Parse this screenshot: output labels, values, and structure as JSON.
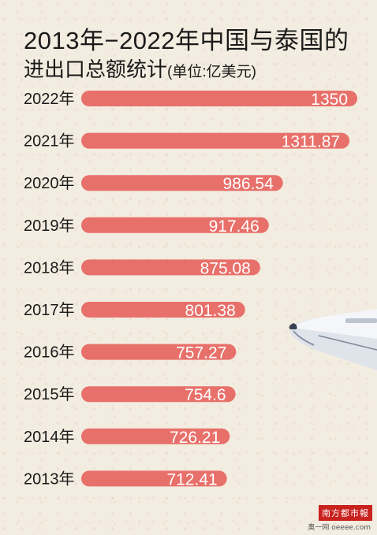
{
  "header": {
    "title": "2013年−2022年中国与泰国的",
    "subtitle": "进出口总额统计",
    "unit": "(单位:亿美元)"
  },
  "colors": {
    "bar": "#e8706a",
    "bar_text": "#ffffff",
    "label": "#1a1a1a"
  },
  "chart_data": {
    "type": "bar",
    "orientation": "horizontal",
    "title": "2013年−2022年中国与泰国的进出口总额统计(单位:亿美元)",
    "categories": [
      "2022年",
      "2021年",
      "2020年",
      "2019年",
      "2018年",
      "2017年",
      "2016年",
      "2015年",
      "2014年",
      "2013年"
    ],
    "values": [
      1350,
      1311.87,
      986.54,
      917.46,
      875.08,
      801.38,
      757.27,
      754.6,
      726.21,
      712.41
    ],
    "value_labels": [
      "1350",
      "1311.87",
      "986.54",
      "917.46",
      "875.08",
      "801.38",
      "757.27",
      "754.6",
      "726.21",
      "712.41"
    ],
    "grid": false,
    "legend": "none"
  },
  "footer": {
    "logo_text": "南方都市報",
    "logo_sub": "奥一网 oeeee.com"
  },
  "decor": {
    "airplane_icon": "airplane-icon"
  }
}
